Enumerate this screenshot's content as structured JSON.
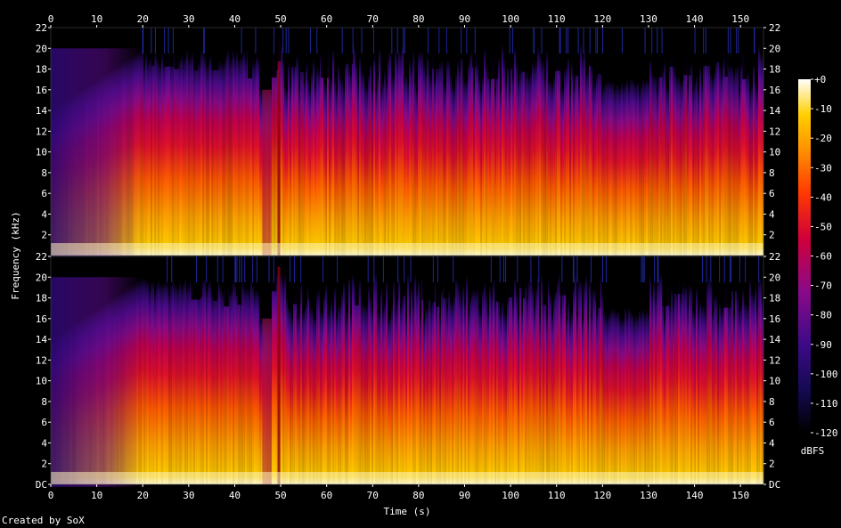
{
  "chart_data": {
    "type": "heatmap",
    "title": "",
    "xlabel": "Time (s)",
    "ylabel": "Frequency (kHz)",
    "xlim": [
      0,
      155
    ],
    "ylim": [
      0,
      22
    ],
    "x_ticks": [
      0,
      10,
      20,
      30,
      40,
      50,
      60,
      70,
      80,
      90,
      100,
      110,
      120,
      130,
      140,
      150
    ],
    "top_panel_y_ticks": [
      "2",
      "4",
      "6",
      "8",
      "10",
      "12",
      "14",
      "16",
      "18",
      "20",
      "22"
    ],
    "bottom_panel_y_ticks": [
      "DC",
      "2",
      "4",
      "6",
      "8",
      "10",
      "12",
      "14",
      "16",
      "18",
      "20",
      "22"
    ],
    "channels": [
      "left",
      "right"
    ],
    "colorbar": {
      "label": "dBFS",
      "ticks": [
        "+0",
        "-10",
        "-20",
        "-30",
        "-40",
        "-50",
        "-60",
        "-70",
        "-80",
        "-90",
        "-100",
        "-110",
        "-120"
      ],
      "range": [
        -120,
        0
      ]
    },
    "colors": {
      "background": "#000000",
      "low": "#05001a",
      "mid_low": "#4a0a8a",
      "mid": "#c8003a",
      "mid_high": "#ff6a00",
      "high": "#ffd000",
      "peak": "#ffffe8"
    },
    "log_scale": false,
    "grid": false
  },
  "footer": {
    "credit": "Created by SoX"
  }
}
